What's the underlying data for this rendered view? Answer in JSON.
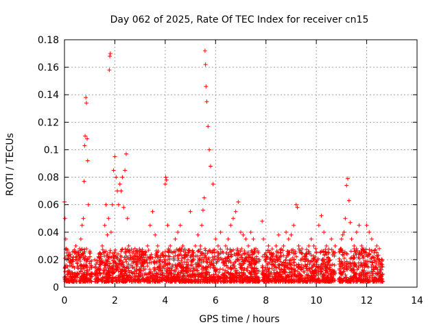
{
  "chart_data": {
    "type": "scatter",
    "title": "Day 062 of 2025, Rate Of TEC Index for receiver cn15",
    "xlabel": "GPS time / hours",
    "ylabel": "ROTI / TECUs",
    "xlim": [
      0,
      14
    ],
    "ylim": [
      0,
      0.18
    ],
    "x_ticks": [
      0,
      2,
      4,
      6,
      8,
      10,
      12,
      14
    ],
    "y_ticks": [
      0,
      0.02,
      0.04,
      0.06,
      0.08,
      0.1,
      0.12,
      0.14,
      0.16,
      0.18
    ],
    "x_tick_labels": [
      "0",
      "2",
      "4",
      "6",
      "8",
      "10",
      "12",
      "14"
    ],
    "y_tick_labels": [
      "0",
      "0.02",
      "0.04",
      "0.06",
      "0.08",
      "0.1",
      "0.12",
      "0.14",
      "0.16",
      "0.18"
    ],
    "grid": true,
    "marker": "+",
    "series": [
      {
        "name": "ROTI",
        "color": "#ff0000",
        "x": [
          0.0,
          0.02,
          0.05,
          0.08,
          0.1,
          0.12,
          0.15,
          0.18,
          0.2,
          0.25,
          0.3,
          0.35,
          0.4,
          0.45,
          0.5,
          0.55,
          0.6,
          0.65,
          0.7,
          0.75,
          0.78,
          0.8,
          0.82,
          0.85,
          0.87,
          0.9,
          0.92,
          0.95,
          1.0,
          1.05,
          1.1,
          1.2,
          1.3,
          1.4,
          1.5,
          1.6,
          1.65,
          1.7,
          1.75,
          1.78,
          1.8,
          1.82,
          1.85,
          1.9,
          1.95,
          2.0,
          2.05,
          2.1,
          2.15,
          2.2,
          2.25,
          2.3,
          2.35,
          2.4,
          2.45,
          2.5,
          2.55,
          2.6,
          2.7,
          2.8,
          2.9,
          3.0,
          3.1,
          3.2,
          3.3,
          3.4,
          3.5,
          3.6,
          3.7,
          3.8,
          3.9,
          4.0,
          4.02,
          4.05,
          4.1,
          4.2,
          4.3,
          4.4,
          4.5,
          4.6,
          4.7,
          4.8,
          4.9,
          5.0,
          5.1,
          5.2,
          5.3,
          5.4,
          5.45,
          5.5,
          5.55,
          5.58,
          5.6,
          5.62,
          5.65,
          5.7,
          5.75,
          5.8,
          5.9,
          6.0,
          6.1,
          6.2,
          6.3,
          6.4,
          6.5,
          6.6,
          6.7,
          6.8,
          6.9,
          7.0,
          7.1,
          7.2,
          7.3,
          7.4,
          7.5,
          7.6,
          7.7,
          7.85,
          7.9,
          8.0,
          8.1,
          8.2,
          8.3,
          8.4,
          8.5,
          8.6,
          8.7,
          8.8,
          8.9,
          9.0,
          9.1,
          9.2,
          9.25,
          9.3,
          9.4,
          9.5,
          9.6,
          9.7,
          9.8,
          9.9,
          10.0,
          10.1,
          10.2,
          10.3,
          10.4,
          10.5,
          10.6,
          10.7,
          10.75,
          11.0,
          11.05,
          11.1,
          11.15,
          11.2,
          11.25,
          11.3,
          11.35,
          11.4,
          11.5,
          11.6,
          11.7,
          11.8,
          11.9,
          12.0,
          12.1,
          12.2,
          12.3,
          12.4,
          12.5,
          12.6
        ],
        "y": [
          0.062,
          0.05,
          0.035,
          0.028,
          0.02,
          0.015,
          0.012,
          0.025,
          0.018,
          0.022,
          0.015,
          0.02,
          0.025,
          0.03,
          0.018,
          0.024,
          0.028,
          0.035,
          0.045,
          0.05,
          0.077,
          0.103,
          0.11,
          0.138,
          0.134,
          0.108,
          0.092,
          0.06,
          0.025,
          0.015,
          0.01,
          0.02,
          0.018,
          0.025,
          0.03,
          0.045,
          0.06,
          0.038,
          0.05,
          0.158,
          0.168,
          0.17,
          0.04,
          0.06,
          0.085,
          0.095,
          0.08,
          0.07,
          0.06,
          0.075,
          0.07,
          0.08,
          0.058,
          0.085,
          0.097,
          0.05,
          0.03,
          0.02,
          0.025,
          0.028,
          0.022,
          0.018,
          0.02,
          0.025,
          0.03,
          0.045,
          0.055,
          0.038,
          0.03,
          0.02,
          0.025,
          0.075,
          0.08,
          0.078,
          0.045,
          0.03,
          0.025,
          0.035,
          0.04,
          0.045,
          0.03,
          0.022,
          0.02,
          0.055,
          0.025,
          0.03,
          0.038,
          0.03,
          0.045,
          0.056,
          0.065,
          0.172,
          0.162,
          0.146,
          0.135,
          0.117,
          0.1,
          0.088,
          0.075,
          0.035,
          0.03,
          0.04,
          0.025,
          0.03,
          0.035,
          0.045,
          0.05,
          0.055,
          0.062,
          0.04,
          0.038,
          0.035,
          0.03,
          0.04,
          0.035,
          0.028,
          0.025,
          0.048,
          0.035,
          0.025,
          0.03,
          0.025,
          0.02,
          0.03,
          0.038,
          0.025,
          0.03,
          0.04,
          0.035,
          0.038,
          0.045,
          0.06,
          0.058,
          0.03,
          0.025,
          0.02,
          0.022,
          0.03,
          0.035,
          0.03,
          0.025,
          0.045,
          0.052,
          0.04,
          0.03,
          0.025,
          0.035,
          0.025,
          0.03,
          0.035,
          0.038,
          0.04,
          0.05,
          0.074,
          0.079,
          0.063,
          0.047,
          0.035,
          0.03,
          0.04,
          0.045,
          0.03,
          0.025,
          0.045,
          0.04,
          0.035,
          0.025,
          0.03,
          0.028,
          0.015
        ]
      }
    ],
    "baseline_segments": [
      [
        0.0,
        1.1
      ],
      [
        1.2,
        7.75
      ],
      [
        7.85,
        10.75
      ],
      [
        10.9,
        12.65
      ]
    ]
  }
}
